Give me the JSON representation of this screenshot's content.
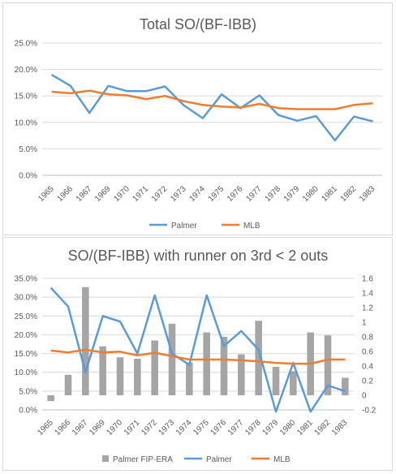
{
  "chart_data": [
    {
      "type": "line",
      "title": "Total SO/(BF-IBB)",
      "categories": [
        "1965",
        "1966",
        "1967",
        "1969",
        "1970",
        "1971",
        "1972",
        "1973",
        "1974",
        "1975",
        "1976",
        "1977",
        "1978",
        "1979",
        "1980",
        "1981",
        "1982",
        "1983"
      ],
      "y_ticks": [
        "0.0%",
        "5.0%",
        "10.0%",
        "15.0%",
        "20.0%",
        "25.0%"
      ],
      "ylim": [
        0,
        25
      ],
      "grid": true,
      "legend": "bottom",
      "series": [
        {
          "name": "Palmer",
          "color": "#5b9bd5",
          "values": [
            19.0,
            16.9,
            11.8,
            16.9,
            15.9,
            15.9,
            16.8,
            13.2,
            10.8,
            15.3,
            12.7,
            15.1,
            11.4,
            10.3,
            11.2,
            6.6,
            11.1,
            10.2
          ]
        },
        {
          "name": "MLB",
          "color": "#ed7d31",
          "values": [
            15.8,
            15.5,
            16.0,
            15.3,
            15.1,
            14.4,
            15.0,
            14.0,
            13.3,
            13.0,
            12.8,
            13.5,
            12.7,
            12.5,
            12.5,
            12.5,
            13.3,
            13.6
          ]
        }
      ]
    },
    {
      "type": "line",
      "title": "SO/(BF-IBB) with runner on 3rd < 2 outs",
      "categories": [
        "1965",
        "1966",
        "1967",
        "1969",
        "1970",
        "1971",
        "1972",
        "1973",
        "1974",
        "1975",
        "1976",
        "1977",
        "1978",
        "1979",
        "1980",
        "1981",
        "1982",
        "1983"
      ],
      "y_ticks": [
        "0.0%",
        "5.0%",
        "10.0%",
        "15.0%",
        "20.0%",
        "25.0%",
        "30.0%",
        "35.0%"
      ],
      "ylim": [
        0,
        35
      ],
      "y2_ticks": [
        "-0.2",
        "0",
        "0.2",
        "0.4",
        "0.6",
        "0.8",
        "1",
        "1.2",
        "1.4",
        "1.6"
      ],
      "y2lim": [
        -0.2,
        1.6
      ],
      "grid": true,
      "legend": "bottom",
      "series": [
        {
          "name": "Palmer FIP-ERA",
          "type": "bar",
          "axis": "secondary",
          "color": "#a5a5a5",
          "values": [
            -0.08,
            0.28,
            1.48,
            0.67,
            0.52,
            0.5,
            0.75,
            0.98,
            0.45,
            0.86,
            0.8,
            0.56,
            1.02,
            0.39,
            0.33,
            0.86,
            0.82,
            0.24
          ]
        },
        {
          "name": "Palmer",
          "color": "#5b9bd5",
          "values": [
            32.5,
            27.5,
            10.0,
            25.0,
            23.5,
            15.0,
            30.5,
            15.0,
            12.0,
            30.5,
            17.0,
            21.0,
            16.0,
            -0.5,
            12.5,
            -0.5,
            6.5,
            5.0
          ]
        },
        {
          "name": "MLB",
          "color": "#ed7d31",
          "values": [
            15.8,
            15.3,
            16.0,
            15.3,
            15.5,
            14.5,
            15.2,
            14.3,
            13.4,
            13.4,
            13.4,
            13.2,
            12.9,
            12.5,
            12.3,
            12.3,
            13.4,
            13.4
          ]
        }
      ]
    }
  ]
}
